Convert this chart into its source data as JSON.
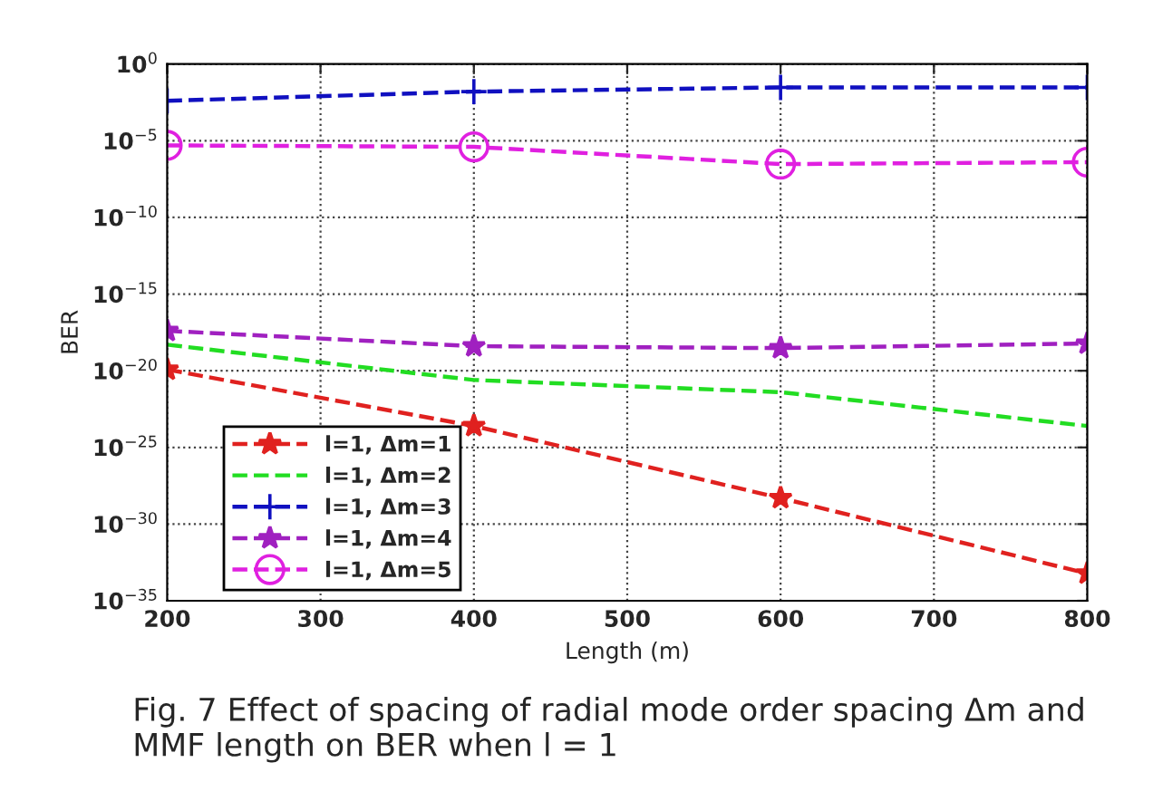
{
  "chart_data": {
    "type": "line",
    "xlabel": "Length (m)",
    "ylabel": "BER",
    "annotations": [
      "Fig. 7 Effect of spacing of radial mode order spacing Δm and MMF length on BER when l = 1"
    ],
    "x": [
      200,
      400,
      600,
      800
    ],
    "series": [
      {
        "name": "l=1, Δm=1",
        "color": "#e0211f",
        "marker": "star",
        "values": [
          1.2e-20,
          2.5e-24,
          5e-29,
          6e-34
        ]
      },
      {
        "name": "l=1, Δm=2",
        "color": "#22dd22",
        "marker": "none",
        "values": [
          5e-19,
          2.5e-21,
          4e-22,
          2.5e-24
        ]
      },
      {
        "name": "l=1, Δm=3",
        "color": "#1010c0",
        "marker": "cross",
        "values": [
          0.004,
          0.016,
          0.03,
          0.03
        ]
      },
      {
        "name": "l=1, Δm=4",
        "color": "#a020c0",
        "marker": "star",
        "values": [
          4e-18,
          4e-19,
          3e-19,
          6e-19
        ]
      },
      {
        "name": "l=1, Δm=5",
        "color": "#e020e0",
        "marker": "circle",
        "values": [
          5e-06,
          4e-06,
          3e-07,
          4e-07
        ]
      }
    ],
    "line_style": "dashed",
    "log": "y",
    "grid": true,
    "legend": "bottom left",
    "xlim": [
      200,
      800
    ],
    "xticks": [
      200,
      300,
      400,
      500,
      600,
      700,
      800
    ],
    "ylim": [
      1e-35,
      1
    ],
    "yticks": [
      {
        "value": 1e-35,
        "label": "10$^{−35}$"
      },
      {
        "value": 1e-30,
        "label": "10$^{−30}$"
      },
      {
        "value": 1e-25,
        "label": "10$^{−25}$"
      },
      {
        "value": 1e-20,
        "label": "10$^{−20}$"
      },
      {
        "value": 1e-15,
        "label": "10$^{−15}$"
      },
      {
        "value": 1e-10,
        "label": "10$^{−10}$"
      },
      {
        "value": 1e-05,
        "label": "10$^{−5}$"
      },
      {
        "value": 1,
        "label": "10$^{0}$"
      }
    ]
  }
}
